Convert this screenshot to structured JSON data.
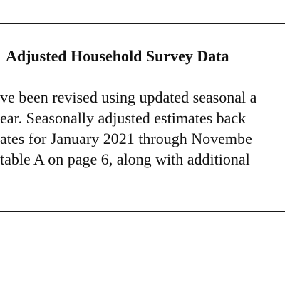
{
  "document": {
    "heading": "Adjusted Household Survey Data",
    "paragraph_lines": [
      "ve been revised using updated seasonal a",
      "ear. Seasonally adjusted estimates back",
      "ates for January 2021 through Novembe",
      "table A on page 6, along with additional"
    ]
  }
}
